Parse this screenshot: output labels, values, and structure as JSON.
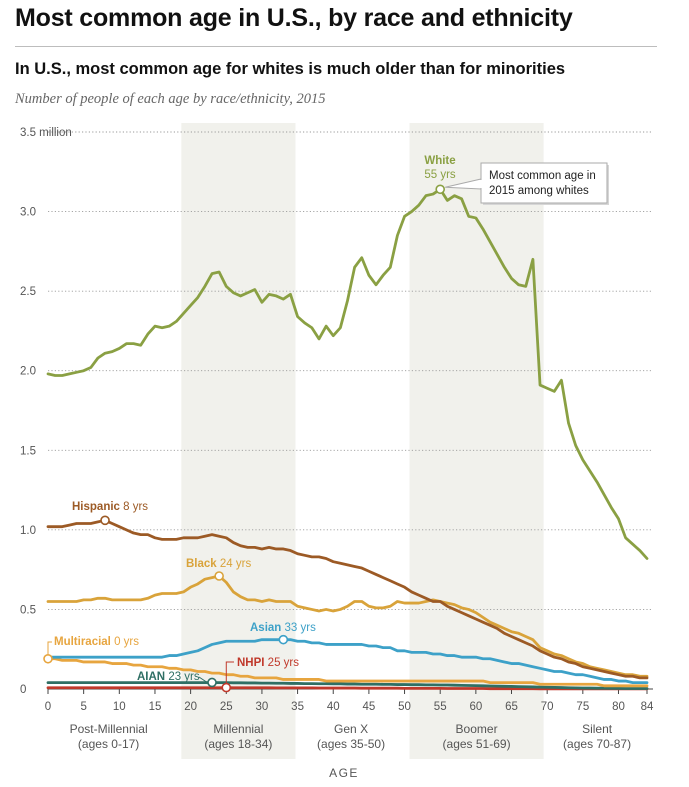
{
  "title": "Most common age in U.S., by race and ethnicity",
  "subtitle": "In U.S., most common age for whites is much older than for minorities",
  "description": "Number of people of each age by race/ethnicity, 2015",
  "chart_data": {
    "type": "line",
    "xlabel": "AGE",
    "ylabel": "",
    "xlim": [
      0,
      84
    ],
    "ylim": [
      0,
      3.5
    ],
    "x_ticks": [
      0,
      5,
      10,
      15,
      20,
      25,
      30,
      35,
      40,
      45,
      50,
      55,
      60,
      65,
      70,
      75,
      80,
      84
    ],
    "y_ticks": [
      {
        "value": 0,
        "label": "0"
      },
      {
        "value": 0.5,
        "label": "0.5"
      },
      {
        "value": 1.0,
        "label": "1.0"
      },
      {
        "value": 1.5,
        "label": "1.5"
      },
      {
        "value": 2.0,
        "label": "2.0"
      },
      {
        "value": 2.5,
        "label": "2.5"
      },
      {
        "value": 3.0,
        "label": "3.0"
      },
      {
        "value": 3.5,
        "label": "3.5 million"
      }
    ],
    "grid": "horizontal dotted",
    "generations": [
      {
        "name": "Post-Millennial",
        "ages": "(ages 0-17)",
        "from": 0,
        "to": 17,
        "shaded": false
      },
      {
        "name": "Millennial",
        "ages": "(ages 18-34)",
        "from": 18.7,
        "to": 34.7,
        "shaded": true
      },
      {
        "name": "Gen X",
        "ages": "(ages 35-50)",
        "from": 35,
        "to": 50,
        "shaded": false
      },
      {
        "name": "Boomer",
        "ages": "(ages 51-69)",
        "from": 50.7,
        "to": 69.5,
        "shaded": true
      },
      {
        "name": "Silent",
        "ages": "(ages 70-87)",
        "from": 70,
        "to": 84,
        "shaded": false
      }
    ],
    "series": [
      {
        "name": "White",
        "peak_label": "55 yrs",
        "peak_age": 55,
        "color": "#8aa043",
        "values": [
          1.98,
          1.97,
          1.97,
          1.98,
          1.99,
          2.0,
          2.02,
          2.08,
          2.11,
          2.12,
          2.14,
          2.17,
          2.17,
          2.16,
          2.23,
          2.28,
          2.27,
          2.28,
          2.31,
          2.36,
          2.41,
          2.46,
          2.53,
          2.61,
          2.62,
          2.53,
          2.49,
          2.47,
          2.49,
          2.51,
          2.43,
          2.48,
          2.47,
          2.45,
          2.48,
          2.34,
          2.3,
          2.27,
          2.2,
          2.28,
          2.22,
          2.27,
          2.44,
          2.65,
          2.71,
          2.6,
          2.54,
          2.6,
          2.65,
          2.85,
          2.97,
          3.0,
          3.04,
          3.1,
          3.11,
          3.14,
          3.07,
          3.1,
          3.08,
          2.97,
          2.96,
          2.89,
          2.81,
          2.73,
          2.65,
          2.58,
          2.54,
          2.53,
          2.7,
          1.91,
          1.89,
          1.87,
          1.94,
          1.67,
          1.53,
          1.44,
          1.37,
          1.3,
          1.22,
          1.14,
          1.07,
          0.95,
          0.91,
          0.87,
          0.82
        ]
      },
      {
        "name": "Hispanic",
        "peak_label": "8 yrs",
        "peak_age": 8,
        "color": "#9c5a25",
        "values": [
          1.02,
          1.02,
          1.02,
          1.03,
          1.04,
          1.04,
          1.04,
          1.05,
          1.06,
          1.04,
          1.02,
          1.0,
          0.98,
          0.97,
          0.97,
          0.95,
          0.94,
          0.94,
          0.94,
          0.95,
          0.95,
          0.95,
          0.96,
          0.97,
          0.96,
          0.95,
          0.92,
          0.9,
          0.89,
          0.89,
          0.88,
          0.89,
          0.88,
          0.88,
          0.87,
          0.85,
          0.84,
          0.83,
          0.83,
          0.82,
          0.8,
          0.79,
          0.78,
          0.77,
          0.76,
          0.74,
          0.72,
          0.7,
          0.68,
          0.66,
          0.64,
          0.61,
          0.59,
          0.57,
          0.55,
          0.55,
          0.52,
          0.5,
          0.48,
          0.46,
          0.44,
          0.42,
          0.4,
          0.38,
          0.35,
          0.33,
          0.31,
          0.29,
          0.27,
          0.24,
          0.22,
          0.2,
          0.19,
          0.17,
          0.16,
          0.14,
          0.13,
          0.12,
          0.11,
          0.1,
          0.09,
          0.08,
          0.08,
          0.07,
          0.07
        ]
      },
      {
        "name": "Black",
        "peak_label": "24 yrs",
        "peak_age": 24,
        "color": "#d9a33a",
        "values": [
          0.55,
          0.55,
          0.55,
          0.55,
          0.55,
          0.56,
          0.56,
          0.57,
          0.57,
          0.56,
          0.56,
          0.56,
          0.56,
          0.56,
          0.57,
          0.59,
          0.6,
          0.6,
          0.6,
          0.61,
          0.64,
          0.66,
          0.69,
          0.7,
          0.71,
          0.67,
          0.61,
          0.58,
          0.56,
          0.56,
          0.55,
          0.56,
          0.55,
          0.55,
          0.55,
          0.52,
          0.51,
          0.5,
          0.49,
          0.5,
          0.49,
          0.5,
          0.52,
          0.55,
          0.55,
          0.52,
          0.51,
          0.51,
          0.52,
          0.55,
          0.54,
          0.54,
          0.54,
          0.55,
          0.56,
          0.55,
          0.54,
          0.53,
          0.51,
          0.5,
          0.48,
          0.45,
          0.42,
          0.4,
          0.38,
          0.36,
          0.35,
          0.33,
          0.31,
          0.26,
          0.24,
          0.22,
          0.21,
          0.19,
          0.17,
          0.16,
          0.14,
          0.13,
          0.12,
          0.11,
          0.1,
          0.09,
          0.09,
          0.08,
          0.08
        ]
      },
      {
        "name": "Asian",
        "peak_label": "33 yrs",
        "peak_age": 33,
        "color": "#3da1c8",
        "values": [
          0.2,
          0.2,
          0.2,
          0.2,
          0.2,
          0.2,
          0.2,
          0.2,
          0.2,
          0.2,
          0.2,
          0.2,
          0.2,
          0.2,
          0.2,
          0.2,
          0.2,
          0.21,
          0.21,
          0.22,
          0.23,
          0.24,
          0.26,
          0.28,
          0.29,
          0.3,
          0.3,
          0.3,
          0.3,
          0.3,
          0.31,
          0.31,
          0.31,
          0.31,
          0.31,
          0.3,
          0.3,
          0.29,
          0.29,
          0.28,
          0.28,
          0.28,
          0.28,
          0.28,
          0.28,
          0.27,
          0.27,
          0.26,
          0.26,
          0.24,
          0.24,
          0.23,
          0.23,
          0.23,
          0.22,
          0.22,
          0.21,
          0.21,
          0.2,
          0.2,
          0.2,
          0.19,
          0.19,
          0.18,
          0.17,
          0.16,
          0.16,
          0.15,
          0.14,
          0.13,
          0.12,
          0.11,
          0.11,
          0.1,
          0.09,
          0.09,
          0.08,
          0.07,
          0.06,
          0.06,
          0.05,
          0.05,
          0.04,
          0.04,
          0.04
        ]
      },
      {
        "name": "Multiracial",
        "peak_label": "0 yrs",
        "peak_age": 0,
        "color": "#e7a53f",
        "values": [
          0.19,
          0.19,
          0.18,
          0.18,
          0.18,
          0.17,
          0.17,
          0.17,
          0.17,
          0.16,
          0.16,
          0.16,
          0.15,
          0.15,
          0.14,
          0.14,
          0.14,
          0.13,
          0.13,
          0.12,
          0.12,
          0.11,
          0.11,
          0.1,
          0.1,
          0.09,
          0.09,
          0.08,
          0.08,
          0.07,
          0.07,
          0.07,
          0.07,
          0.06,
          0.06,
          0.06,
          0.06,
          0.06,
          0.06,
          0.05,
          0.05,
          0.05,
          0.05,
          0.05,
          0.05,
          0.05,
          0.05,
          0.05,
          0.05,
          0.05,
          0.05,
          0.05,
          0.05,
          0.05,
          0.05,
          0.05,
          0.05,
          0.05,
          0.05,
          0.05,
          0.05,
          0.05,
          0.04,
          0.04,
          0.04,
          0.04,
          0.04,
          0.04,
          0.04,
          0.03,
          0.03,
          0.03,
          0.03,
          0.03,
          0.03,
          0.03,
          0.03,
          0.03,
          0.02,
          0.02,
          0.02,
          0.02,
          0.02,
          0.02,
          0.02
        ]
      },
      {
        "name": "AIAN",
        "peak_label": "23 yrs",
        "peak_age": 23,
        "color": "#2f6f64",
        "values": [
          0.04,
          0.04,
          0.04,
          0.04,
          0.04,
          0.04,
          0.04,
          0.04,
          0.04,
          0.04,
          0.04,
          0.04,
          0.04,
          0.04,
          0.04,
          0.04,
          0.04,
          0.04,
          0.04,
          0.04,
          0.04,
          0.04,
          0.04,
          0.041,
          0.04,
          0.04,
          0.039,
          0.039,
          0.038,
          0.038,
          0.037,
          0.037,
          0.036,
          0.036,
          0.035,
          0.035,
          0.034,
          0.034,
          0.033,
          0.033,
          0.032,
          0.032,
          0.031,
          0.031,
          0.03,
          0.03,
          0.03,
          0.029,
          0.029,
          0.028,
          0.028,
          0.027,
          0.027,
          0.026,
          0.026,
          0.025,
          0.025,
          0.024,
          0.023,
          0.022,
          0.021,
          0.02,
          0.019,
          0.018,
          0.017,
          0.016,
          0.015,
          0.014,
          0.013,
          0.012,
          0.011,
          0.01,
          0.009,
          0.008,
          0.007,
          0.006,
          0.006,
          0.005,
          0.005,
          0.004,
          0.004,
          0.003,
          0.003,
          0.003,
          0.003
        ]
      },
      {
        "name": "NHPI",
        "peak_label": "25 yrs",
        "peak_age": 25,
        "color": "#c0392b",
        "values": [
          0.008,
          0.008,
          0.008,
          0.008,
          0.008,
          0.008,
          0.008,
          0.008,
          0.008,
          0.008,
          0.008,
          0.008,
          0.008,
          0.008,
          0.008,
          0.008,
          0.008,
          0.008,
          0.008,
          0.008,
          0.008,
          0.008,
          0.008,
          0.008,
          0.008,
          0.009,
          0.008,
          0.008,
          0.008,
          0.008,
          0.008,
          0.008,
          0.007,
          0.007,
          0.007,
          0.007,
          0.007,
          0.007,
          0.006,
          0.006,
          0.006,
          0.006,
          0.006,
          0.006,
          0.005,
          0.005,
          0.005,
          0.005,
          0.005,
          0.005,
          0.004,
          0.004,
          0.004,
          0.004,
          0.004,
          0.004,
          0.003,
          0.003,
          0.003,
          0.003,
          0.003,
          0.003,
          0.002,
          0.002,
          0.002,
          0.002,
          0.002,
          0.002,
          0.002,
          0.001,
          0.001,
          0.001,
          0.001,
          0.001,
          0.001,
          0.001,
          0.001,
          0.001,
          0.001,
          0.001,
          0.001,
          0.001,
          0.001,
          0.001,
          0.001
        ]
      }
    ],
    "annotations": [
      {
        "text": "Most common age in 2015 among whites",
        "points_to": "White",
        "age": 55
      }
    ]
  },
  "colors": {
    "shade": "#f1f1ec",
    "grid": "#9a9a9a",
    "tick_label": "#555555",
    "axis_title": "#555555"
  }
}
